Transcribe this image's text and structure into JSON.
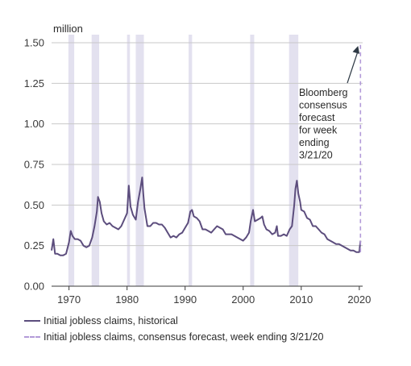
{
  "chart_data": {
    "type": "line",
    "unit_label": "million",
    "xlim": [
      1967,
      2020.3
    ],
    "ylim": [
      0,
      1.5
    ],
    "y_ticks": [
      "0.00",
      "0.25",
      "0.50",
      "0.75",
      "1.00",
      "1.25",
      "1.50"
    ],
    "y_tick_values": [
      0,
      0.25,
      0.5,
      0.75,
      1.0,
      1.25,
      1.5
    ],
    "x_ticks": [
      "1970",
      "1980",
      "1990",
      "2000",
      "2010",
      "2020"
    ],
    "x_tick_values": [
      1970,
      1980,
      1990,
      2000,
      2010,
      2020
    ],
    "grid": "horizontal",
    "recessions": [
      [
        1969.9,
        1970.9
      ],
      [
        1973.9,
        1975.2
      ],
      [
        1980.0,
        1980.5
      ],
      [
        1981.5,
        1982.9
      ],
      [
        1990.6,
        1991.2
      ],
      [
        2001.2,
        2001.9
      ],
      [
        2007.9,
        2009.5
      ]
    ],
    "series": [
      {
        "name": "Initial jobless claims, historical",
        "color": "#5c4d7d",
        "x": [
          1967.0,
          1967.3,
          1967.6,
          1968.0,
          1968.5,
          1969.0,
          1969.5,
          1970.0,
          1970.3,
          1970.6,
          1971.0,
          1971.5,
          1972.0,
          1972.5,
          1973.0,
          1973.5,
          1974.0,
          1974.4,
          1974.8,
          1975.0,
          1975.3,
          1975.6,
          1976.0,
          1976.5,
          1977.0,
          1977.5,
          1978.0,
          1978.5,
          1979.0,
          1979.5,
          1980.0,
          1980.3,
          1980.6,
          1981.0,
          1981.5,
          1981.9,
          1982.3,
          1982.6,
          1982.8,
          1983.0,
          1983.5,
          1984.0,
          1984.5,
          1985.0,
          1985.5,
          1986.0,
          1986.5,
          1987.0,
          1987.5,
          1988.0,
          1988.5,
          1989.0,
          1989.5,
          1990.0,
          1990.5,
          1990.9,
          1991.2,
          1991.5,
          1992.0,
          1992.5,
          1993.0,
          1993.5,
          1994.0,
          1994.5,
          1995.0,
          1995.5,
          1996.0,
          1996.5,
          1997.0,
          1997.5,
          1998.0,
          1998.5,
          1999.0,
          1999.5,
          2000.0,
          2000.5,
          2001.0,
          2001.3,
          2001.7,
          2002.0,
          2002.5,
          2003.0,
          2003.3,
          2003.6,
          2004.0,
          2004.5,
          2005.0,
          2005.5,
          2005.8,
          2006.0,
          2006.5,
          2007.0,
          2007.5,
          2008.0,
          2008.4,
          2008.8,
          2009.0,
          2009.25,
          2009.5,
          2009.8,
          2010.0,
          2010.5,
          2011.0,
          2011.5,
          2012.0,
          2012.5,
          2013.0,
          2013.5,
          2014.0,
          2014.5,
          2015.0,
          2015.5,
          2016.0,
          2016.5,
          2017.0,
          2017.5,
          2018.0,
          2018.5,
          2019.0,
          2019.5,
          2020.0,
          2020.2
        ],
        "y": [
          0.22,
          0.29,
          0.2,
          0.2,
          0.19,
          0.19,
          0.2,
          0.27,
          0.34,
          0.31,
          0.29,
          0.29,
          0.28,
          0.25,
          0.24,
          0.25,
          0.3,
          0.37,
          0.46,
          0.55,
          0.52,
          0.45,
          0.4,
          0.38,
          0.39,
          0.37,
          0.36,
          0.35,
          0.37,
          0.41,
          0.45,
          0.62,
          0.49,
          0.44,
          0.41,
          0.52,
          0.6,
          0.67,
          0.57,
          0.48,
          0.37,
          0.37,
          0.39,
          0.39,
          0.38,
          0.38,
          0.36,
          0.33,
          0.3,
          0.31,
          0.3,
          0.32,
          0.33,
          0.36,
          0.39,
          0.46,
          0.47,
          0.43,
          0.42,
          0.4,
          0.35,
          0.35,
          0.34,
          0.33,
          0.35,
          0.37,
          0.36,
          0.35,
          0.32,
          0.32,
          0.32,
          0.31,
          0.3,
          0.29,
          0.28,
          0.3,
          0.33,
          0.4,
          0.47,
          0.4,
          0.41,
          0.42,
          0.43,
          0.38,
          0.35,
          0.34,
          0.32,
          0.33,
          0.37,
          0.31,
          0.31,
          0.32,
          0.31,
          0.35,
          0.37,
          0.5,
          0.6,
          0.65,
          0.57,
          0.52,
          0.47,
          0.46,
          0.42,
          0.41,
          0.37,
          0.37,
          0.35,
          0.33,
          0.32,
          0.29,
          0.28,
          0.27,
          0.26,
          0.26,
          0.25,
          0.24,
          0.23,
          0.22,
          0.22,
          0.21,
          0.21,
          0.28
        ]
      },
      {
        "name": "Initial jobless claims, consensus forecast, week ending 3/21/20",
        "color": "#b29ad8",
        "dashed": true,
        "x": [
          2020.2,
          2020.2
        ],
        "y": [
          0.21,
          1.5
        ]
      }
    ],
    "annotation": {
      "lines": [
        "Bloomberg",
        "consensus",
        "forecast",
        "for week",
        "ending",
        "3/21/20"
      ],
      "arrow_target_x": 2020.2,
      "arrow_target_y": 1.5
    }
  },
  "legend": {
    "historical_label": "Initial jobless claims, historical",
    "forecast_label": "Initial jobless claims, consensus forecast, week ending 3/21/20"
  }
}
